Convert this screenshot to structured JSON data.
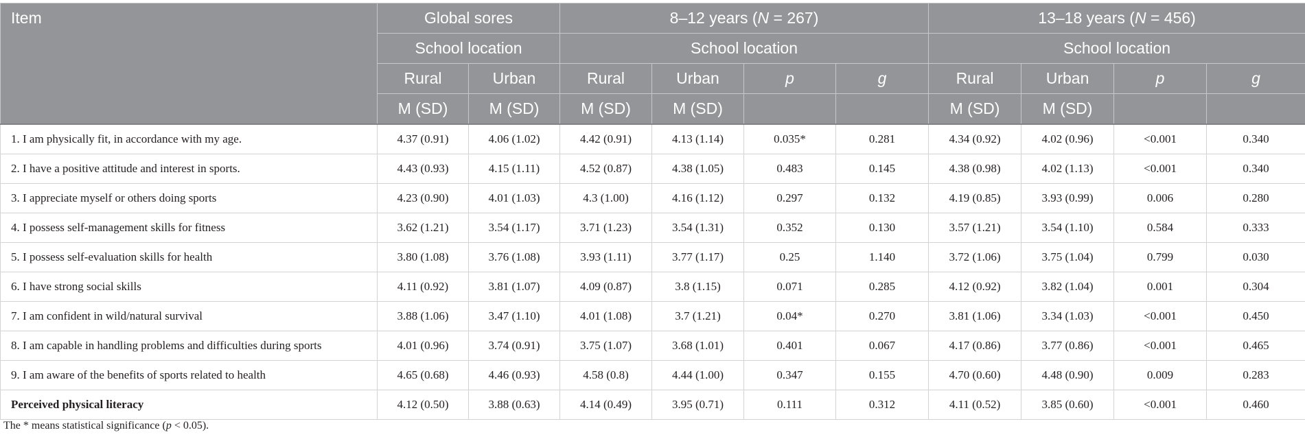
{
  "table": {
    "header": {
      "item": "Item",
      "global": "Global sores",
      "group1": {
        "prefix": "8–12 years (",
        "n_label": "N",
        "n_value": " = 267)"
      },
      "group2": {
        "prefix": "13–18 years (",
        "n_label": "N",
        "n_value": " = 456)"
      },
      "school_location": "School location",
      "rural": "Rural",
      "urban": "Urban",
      "p": "p",
      "g": "g",
      "msd": "M (SD)"
    },
    "rows": [
      {
        "item": "1. I am physically fit, in accordance with my age.",
        "values": [
          "4.37 (0.91)",
          "4.06 (1.02)",
          "4.42 (0.91)",
          "4.13 (1.14)",
          "0.035*",
          "0.281",
          "4.34 (0.92)",
          "4.02 (0.96)",
          "<0.001",
          "0.340"
        ]
      },
      {
        "item": "2. I have a positive attitude and interest in sports.",
        "values": [
          "4.43 (0.93)",
          "4.15 (1.11)",
          "4.52 (0.87)",
          "4.38 (1.05)",
          "0.483",
          "0.145",
          "4.38 (0.98)",
          "4.02 (1.13)",
          "<0.001",
          "0.340"
        ]
      },
      {
        "item": "3. I appreciate myself or others doing sports",
        "values": [
          "4.23 (0.90)",
          "4.01 (1.03)",
          "4.3 (1.00)",
          "4.16 (1.12)",
          "0.297",
          "0.132",
          "4.19 (0.85)",
          "3.93 (0.99)",
          "0.006",
          "0.280"
        ]
      },
      {
        "item": "4. I possess self-management skills for fitness",
        "values": [
          "3.62 (1.21)",
          "3.54 (1.17)",
          "3.71 (1.23)",
          "3.54 (1.31)",
          "0.352",
          "0.130",
          "3.57 (1.21)",
          "3.54 (1.10)",
          "0.584",
          "0.333"
        ]
      },
      {
        "item": "5. I possess self-evaluation skills for health",
        "values": [
          "3.80 (1.08)",
          "3.76 (1.08)",
          "3.93 (1.11)",
          "3.77 (1.17)",
          "0.25",
          "1.140",
          "3.72 (1.06)",
          "3.75 (1.04)",
          "0.799",
          "0.030"
        ]
      },
      {
        "item": "6. I have strong social skills",
        "values": [
          "4.11 (0.92)",
          "3.81 (1.07)",
          "4.09 (0.87)",
          "3.8 (1.15)",
          "0.071",
          "0.285",
          "4.12 (0.92)",
          "3.82 (1.04)",
          "0.001",
          "0.304"
        ]
      },
      {
        "item": "7. I am confident in wild/natural survival",
        "values": [
          "3.88 (1.06)",
          "3.47 (1.10)",
          "4.01 (1.08)",
          "3.7 (1.21)",
          "0.04*",
          "0.270",
          "3.81 (1.06)",
          "3.34 (1.03)",
          "<0.001",
          "0.450"
        ]
      },
      {
        "item": "8. I am capable in handling problems and difficulties during sports",
        "values": [
          "4.01 (0.96)",
          "3.74 (0.91)",
          "3.75 (1.07)",
          "3.68 (1.01)",
          "0.401",
          "0.067",
          "4.17 (0.86)",
          "3.77 (0.86)",
          "<0.001",
          "0.465"
        ]
      },
      {
        "item": "9. I am aware of the benefits of sports related to health",
        "values": [
          "4.65 (0.68)",
          "4.46 (0.93)",
          "4.58 (0.8)",
          "4.44 (1.00)",
          "0.347",
          "0.155",
          "4.70 (0.60)",
          "4.48 (0.90)",
          "0.009",
          "0.283"
        ]
      },
      {
        "item": "Perceived physical literacy",
        "values": [
          "4.12 (0.50)",
          "3.88 (0.63)",
          "4.14 (0.49)",
          "3.95 (0.71)",
          "0.111",
          "0.312",
          "4.11 (0.52)",
          "3.85 (0.60)",
          "<0.001",
          "0.460"
        ]
      }
    ]
  },
  "footnote": {
    "part1": "The * means statistical significance (",
    "p": "p",
    "part2": " < 0.05)."
  }
}
